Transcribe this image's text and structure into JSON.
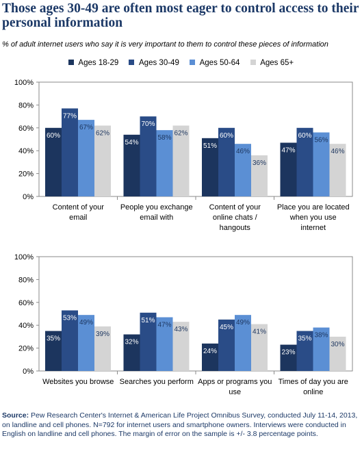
{
  "title": "Those ages 30-49 are often most eager to control access to their personal information",
  "subtitle": "% of adult internet users who say it is very important to them to control these pieces of information",
  "legend": [
    {
      "label": "Ages 18-29",
      "color": "#1c355e"
    },
    {
      "label": "Ages 30-49",
      "color": "#2a4c87"
    },
    {
      "label": "Ages 50-64",
      "color": "#5b8fd4"
    },
    {
      "label": "Ages 65+",
      "color": "#d4d4d4"
    }
  ],
  "chart_data": [
    {
      "type": "bar",
      "ylim": [
        0,
        100
      ],
      "yticks": [
        "0%",
        "20%",
        "40%",
        "60%",
        "80%",
        "100%"
      ],
      "categories": [
        [
          "Content of your",
          "email"
        ],
        [
          "People you exchange",
          "email with"
        ],
        [
          "Content of your",
          "online chats /",
          "hangouts"
        ],
        [
          "Place you are located",
          "when you use",
          "internet"
        ]
      ],
      "series": [
        {
          "name": "Ages 18-29",
          "values": [
            60,
            54,
            51,
            47
          ]
        },
        {
          "name": "Ages 30-49",
          "values": [
            77,
            70,
            60,
            60
          ]
        },
        {
          "name": "Ages 50-64",
          "values": [
            67,
            58,
            46,
            56
          ]
        },
        {
          "name": "Ages 65+",
          "values": [
            62,
            62,
            36,
            46
          ]
        }
      ]
    },
    {
      "type": "bar",
      "ylim": [
        0,
        100
      ],
      "yticks": [
        "0%",
        "20%",
        "40%",
        "60%",
        "80%",
        "100%"
      ],
      "categories": [
        [
          "Websites you browse"
        ],
        [
          "Searches you perform"
        ],
        [
          "Apps or programs you",
          "use"
        ],
        [
          "Times of day you are",
          "online"
        ]
      ],
      "series": [
        {
          "name": "Ages 18-29",
          "values": [
            35,
            32,
            24,
            23
          ]
        },
        {
          "name": "Ages 30-49",
          "values": [
            53,
            51,
            45,
            35
          ]
        },
        {
          "name": "Ages 50-64",
          "values": [
            49,
            47,
            49,
            38
          ]
        },
        {
          "name": "Ages 65+",
          "values": [
            39,
            43,
            41,
            30
          ]
        }
      ]
    }
  ],
  "source": {
    "label": "Source:",
    "text": " Pew Research Center's Internet & American Life Project Omnibus Survey, conducted July 11-14, 2013, on landline and cell phones. N=792 for internet users and smartphone owners. Interviews were conducted in English on landline and cell phones. The margin of error on the sample is +/- 3.8 percentage points."
  }
}
